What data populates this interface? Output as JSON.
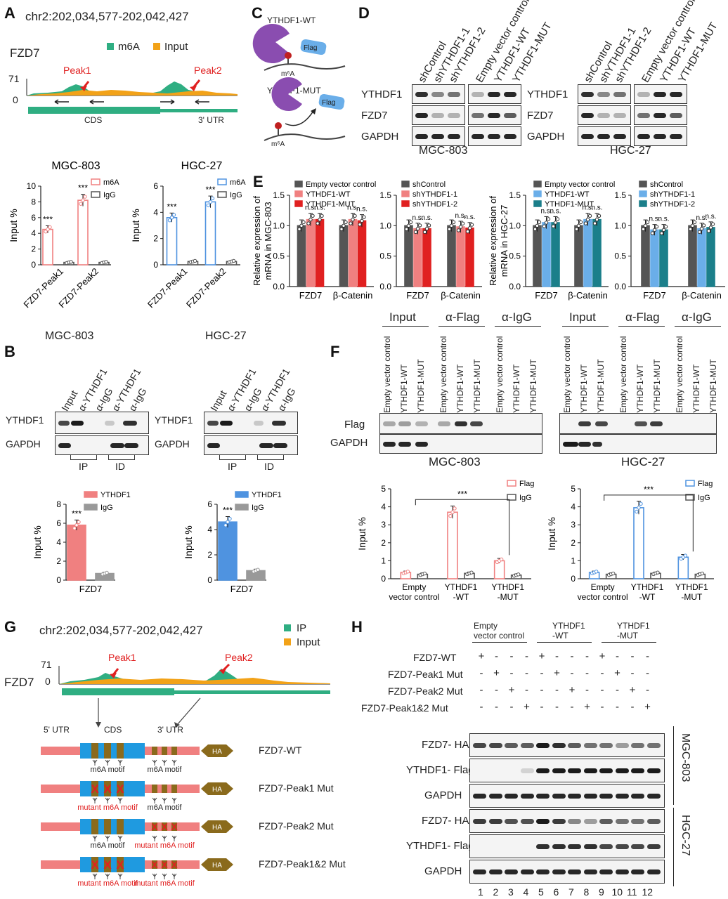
{
  "panel_labels": {
    "a": "A",
    "b": "B",
    "c": "C",
    "d": "D",
    "e": "E",
    "f": "F",
    "g": "G",
    "h": "H"
  },
  "coords": "chr2:202,034,577-202,042,427",
  "gene": "FZD7",
  "track": {
    "ymax": "71",
    "ymin": "0",
    "legend_m6a": "m6A",
    "legend_input": "Input",
    "legend_ip": "IP",
    "legend_input_g": "Input",
    "peak1": "Peak1",
    "peak2": "Peak2",
    "cds": "CDS",
    "utr3": "3' UTR"
  },
  "colors": {
    "green": "#2fae82",
    "orange": "#f2a218",
    "pink": "#f08080",
    "blue": "#4f93e0",
    "gray": "#555555",
    "red": "#e02020",
    "teal": "#1b7f8a",
    "lightblue": "#6aaee9",
    "brown": "#8a6a1c",
    "purple": "#8a4db0",
    "ctrlgray": "#555555"
  },
  "cells": {
    "mgc": "MGC-803",
    "hgc": "HGC-27"
  },
  "chart_data": [
    {
      "type": "bar",
      "panel": "A",
      "title": "MGC-803",
      "ylabel": "Input %",
      "ylim": [
        0,
        10
      ],
      "yticks": [
        0,
        2,
        4,
        6,
        8,
        10
      ],
      "categories": [
        "FZD7-Peak1",
        "FZD7-Peak2"
      ],
      "series": [
        {
          "name": "m6A",
          "values": [
            4.5,
            8.2
          ]
        },
        {
          "name": "IgG",
          "values": [
            0.3,
            0.3
          ]
        }
      ],
      "sig": [
        "***",
        "***"
      ]
    },
    {
      "type": "bar",
      "panel": "A",
      "title": "HGC-27",
      "ylabel": "Input %",
      "ylim": [
        0,
        6
      ],
      "yticks": [
        0,
        2,
        4,
        6
      ],
      "categories": [
        "FZD7-Peak1",
        "FZD7-Peak2"
      ],
      "series": [
        {
          "name": "m6A",
          "values": [
            3.6,
            4.8
          ]
        },
        {
          "name": "IgG",
          "values": [
            0.25,
            0.25
          ]
        }
      ],
      "sig": [
        "***",
        "***"
      ]
    },
    {
      "type": "bar",
      "panel": "B",
      "ylabel": "Input %",
      "ylim": [
        0,
        8
      ],
      "yticks": [
        0,
        2,
        4,
        6,
        8
      ],
      "categories": [
        "FZD7"
      ],
      "series": [
        {
          "name": "YTHDF1",
          "values": [
            5.8
          ]
        },
        {
          "name": "IgG",
          "values": [
            0.7
          ]
        }
      ],
      "sig": [
        "***"
      ]
    },
    {
      "type": "bar",
      "panel": "B",
      "ylabel": "Input %",
      "ylim": [
        0,
        6
      ],
      "yticks": [
        0,
        2,
        4,
        6
      ],
      "categories": [
        "FZD7"
      ],
      "series": [
        {
          "name": "YTHDF1",
          "values": [
            4.6
          ]
        },
        {
          "name": "IgG",
          "values": [
            0.75
          ]
        }
      ],
      "sig": [
        "***"
      ]
    },
    {
      "type": "bar",
      "panel": "E",
      "ylabel": "Relative expression of mRNA in MGC-803",
      "ylim": [
        0,
        1.5
      ],
      "yticks": [
        "0.0",
        "0.5",
        "1.0",
        "1.5"
      ],
      "categories": [
        "FZD7",
        "β-Catenin"
      ],
      "series": [
        {
          "name": "Empty vector control",
          "values": [
            1.0,
            1.0
          ]
        },
        {
          "name": "YTHDF1-WT",
          "values": [
            1.1,
            1.1
          ]
        },
        {
          "name": "YTHDF1-MUT",
          "values": [
            1.1,
            1.08
          ]
        }
      ],
      "sig": [
        "n.s.",
        "n.s.",
        "n.s.",
        "n.s."
      ]
    },
    {
      "type": "bar",
      "panel": "E",
      "ylim": [
        0,
        1.5
      ],
      "yticks": [
        "0.0",
        "0.5",
        "1.0",
        "1.5"
      ],
      "categories": [
        "FZD7",
        "β-Catenin"
      ],
      "series": [
        {
          "name": "shControl",
          "values": [
            1.0,
            1.0
          ]
        },
        {
          "name": "shYTHDF1-1",
          "values": [
            0.95,
            0.98
          ]
        },
        {
          "name": "shYTHDF1-2",
          "values": [
            0.95,
            0.96
          ]
        }
      ],
      "sig": [
        "n.s.",
        "n.s.",
        "n.s.",
        "n.s."
      ]
    },
    {
      "type": "bar",
      "panel": "E",
      "ylabel": "Relative expression of mRNA in HGC-27",
      "ylim": [
        0,
        1.5
      ],
      "yticks": [
        "0.0",
        "0.5",
        "1.0",
        "1.5"
      ],
      "categories": [
        "FZD7",
        "β-Catenin"
      ],
      "series": [
        {
          "name": "Empty vector control",
          "values": [
            1.0,
            1.0
          ]
        },
        {
          "name": "YTHDF1-WT",
          "values": [
            1.05,
            1.1
          ]
        },
        {
          "name": "YTHDF1-MUT",
          "values": [
            1.05,
            1.1
          ]
        }
      ],
      "sig": [
        "n.s.",
        "n.s.",
        "n.s.",
        "n.s."
      ]
    },
    {
      "type": "bar",
      "panel": "E",
      "ylim": [
        0,
        1.5
      ],
      "yticks": [
        "0.0",
        "0.5",
        "1.0",
        "1.5"
      ],
      "categories": [
        "FZD7",
        "β-Catenin"
      ],
      "series": [
        {
          "name": "shControl",
          "values": [
            1.0,
            1.0
          ]
        },
        {
          "name": "shYTHDF1-1",
          "values": [
            0.93,
            0.95
          ]
        },
        {
          "name": "shYTHDF1-2",
          "values": [
            0.93,
            0.97
          ]
        }
      ],
      "sig": [
        "n.s.",
        "n.s.",
        "n.s.",
        "n.s."
      ]
    },
    {
      "type": "bar",
      "panel": "F",
      "ylabel": "Input %",
      "ylim": [
        0,
        5
      ],
      "yticks": [
        0,
        1,
        2,
        3,
        4,
        5
      ],
      "categories": [
        "Empty vector control",
        "YTHDF1 -WT",
        "YTHDF1 -MUT"
      ],
      "series": [
        {
          "name": "Flag",
          "values": [
            0.35,
            3.7,
            1.0
          ]
        },
        {
          "name": "IgG",
          "values": [
            0.25,
            0.3,
            0.2
          ]
        }
      ],
      "sig": [
        "***"
      ]
    },
    {
      "type": "bar",
      "panel": "F",
      "ylabel": "Input %",
      "ylim": [
        0,
        5
      ],
      "yticks": [
        0,
        1,
        2,
        3,
        4,
        5
      ],
      "categories": [
        "Empty vector control",
        "YTHDF1 -WT",
        "YTHDF1 -MUT"
      ],
      "series": [
        {
          "name": "Flag",
          "values": [
            0.35,
            3.95,
            1.2
          ]
        },
        {
          "name": "IgG",
          "values": [
            0.25,
            0.3,
            0.25
          ]
        }
      ],
      "sig": [
        "***"
      ]
    }
  ],
  "c": {
    "wt": "YTHDF1-WT",
    "mut": "YTHDF1-MUT",
    "flag": "Flag",
    "m6a": "m⁶A"
  },
  "d": {
    "lanes_left": [
      "shControl",
      "shYTHDF1-1",
      "shYTHDF1-2"
    ],
    "lanes_right": [
      "Empty vector control",
      "YTHDF1-WT",
      "YTHDF1-MUT"
    ],
    "rows": [
      "YTHDF1",
      "FZD7",
      "GAPDH"
    ]
  },
  "b": {
    "lanes": [
      "Input",
      "α-YTHDF1",
      "α-IgG",
      "α-YTHDF1",
      "α-IgG"
    ],
    "rows": [
      "YTHDF1",
      "GAPDH"
    ],
    "ip": "IP",
    "id": "ID"
  },
  "f": {
    "groups": [
      "Input",
      "α-Flag",
      "α-IgG"
    ],
    "lanes": [
      "Empty vector control",
      "YTHDF1-WT",
      "YTHDF1-MUT"
    ],
    "rows": [
      "Flag",
      "GAPDH"
    ]
  },
  "g": {
    "utr5": "5' UTR",
    "cds": "CDS",
    "utr3": "3' UTR",
    "ha": "HA",
    "motif": "m6A motif",
    "mutant": "mutant m6A motif",
    "constructs": [
      "FZD7-WT",
      "FZD7-Peak1 Mut",
      "FZD7-Peak2 Mut",
      "FZD7-Peak1&2 Mut"
    ]
  },
  "h": {
    "groups": [
      "Empty vector control",
      "YTHDF1 -WT",
      "YTHDF1 -MUT"
    ],
    "conditions": [
      "FZD7-WT",
      "FZD7-Peak1 Mut",
      "FZD7-Peak2 Mut",
      "FZD7-Peak1&2 Mut"
    ],
    "rows": [
      "FZD7- HA",
      "YTHDF1- Flag",
      "GAPDH"
    ],
    "lane_numbers": [
      "1",
      "2",
      "3",
      "4",
      "5",
      "6",
      "7",
      "8",
      "9",
      "10",
      "11",
      "12"
    ],
    "plus": "+",
    "minus": "-"
  }
}
